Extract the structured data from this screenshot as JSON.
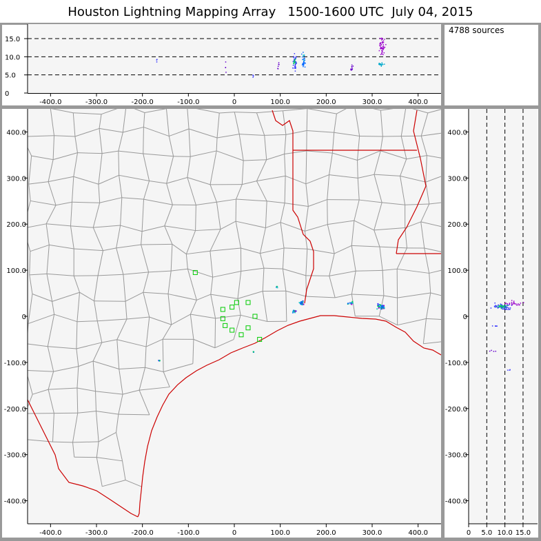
{
  "title": "Houston Lightning Mapping Array   1500-1600 UTC  July 04, 2015",
  "source_count": "4788 sources",
  "colors": {
    "frame": "#999999",
    "plot_bg": "#f5f5f5",
    "county": "#999999",
    "state": "#cc0000",
    "station": "#00cc00"
  },
  "chart_data": [
    {
      "type": "scatter",
      "name": "altitude-vs-east-west",
      "xlim": [
        -450,
        450
      ],
      "ylim": [
        0,
        19
      ],
      "xticks": [
        -400,
        -300,
        -200,
        -100,
        0,
        100,
        200,
        300,
        400
      ],
      "xtick_labels": [
        "-400.0",
        "-300.0",
        "-200.0",
        "-100.0",
        "0",
        "100.0",
        "200.0",
        "300.0",
        "400.0"
      ],
      "yticks": [
        0,
        5,
        10,
        15
      ],
      "ytick_labels": [
        "0",
        "5.0",
        "10.0",
        "15.0"
      ],
      "reference_lines": [
        5,
        10,
        15
      ]
    },
    {
      "type": "scatter",
      "name": "plan-view-map",
      "xlim": [
        -450,
        450
      ],
      "ylim": [
        -450,
        450
      ],
      "xticks": [
        -400,
        -300,
        -200,
        -100,
        0,
        100,
        200,
        300,
        400
      ],
      "xtick_labels": [
        "-400.0",
        "-300.0",
        "-200.0",
        "-100.0",
        "0",
        "100.0",
        "200.0",
        "300.0",
        "400.0"
      ],
      "yticks": [
        -400,
        -300,
        -200,
        -100,
        0,
        100,
        200,
        300,
        400
      ],
      "ytick_labels": [
        "-400.0",
        "-300.0",
        "-200.0",
        "-100.0",
        "0",
        "100.0",
        "200.0",
        "300.0",
        "400.0"
      ],
      "stations": [
        [
          -85,
          95
        ],
        [
          -25,
          15
        ],
        [
          -5,
          20
        ],
        [
          5,
          30
        ],
        [
          30,
          30
        ],
        [
          -25,
          -5
        ],
        [
          -20,
          -20
        ],
        [
          -5,
          -30
        ],
        [
          15,
          -40
        ],
        [
          30,
          -25
        ],
        [
          45,
          0
        ],
        [
          55,
          -50
        ]
      ],
      "clusters": [
        {
          "x": 320,
          "y": 22,
          "spread": [
            14,
            7
          ],
          "count": 40
        },
        {
          "x": 145,
          "y": 30,
          "spread": [
            8,
            6
          ],
          "count": 20
        },
        {
          "x": 130,
          "y": 12,
          "spread": [
            6,
            4
          ],
          "count": 12
        },
        {
          "x": 250,
          "y": 30,
          "spread": [
            8,
            4
          ],
          "count": 10
        },
        {
          "x": 92,
          "y": 65,
          "spread": [
            3,
            2
          ],
          "count": 4
        },
        {
          "x": 40,
          "y": -75,
          "spread": [
            2,
            2
          ],
          "count": 3
        },
        {
          "x": -165,
          "y": -95,
          "spread": [
            2,
            2
          ],
          "count": 3
        }
      ]
    },
    {
      "type": "scatter",
      "name": "north-south-vs-altitude",
      "xlim": [
        0,
        19
      ],
      "ylim": [
        -450,
        450
      ],
      "xticks": [
        0,
        5,
        10,
        15
      ],
      "xtick_labels": [
        "0",
        "5.0",
        "10.0",
        "15.0"
      ],
      "yticks": [
        -400,
        -300,
        -200,
        -100,
        0,
        100,
        200,
        300,
        400
      ],
      "ytick_labels": [
        "-400.0",
        "-300.0",
        "-200.0",
        "-100.0",
        "0",
        "100.0",
        "200.0",
        "300.0",
        "400.0"
      ],
      "reference_lines": [
        5,
        10,
        15
      ]
    }
  ]
}
